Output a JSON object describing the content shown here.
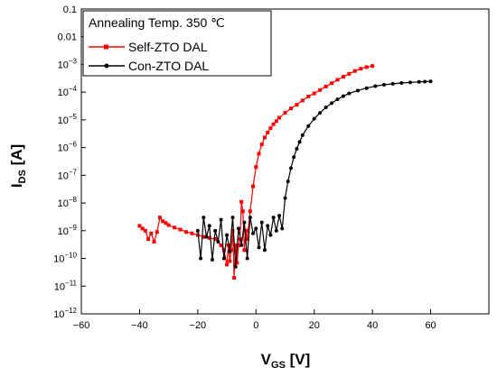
{
  "chart_data": {
    "type": "line",
    "xlabel": {
      "main": "V",
      "sub": "GS",
      "unit": " [V]"
    },
    "ylabel": {
      "main": "I",
      "sub": "DS",
      "unit": " [A]"
    },
    "xlim": [
      -60,
      80
    ],
    "ylim_log10": [
      -12,
      -1
    ],
    "yscale": "log",
    "grid": false,
    "legend": {
      "title": "Annealing Temp. 350 ℃",
      "placement": "top-left"
    },
    "x_ticks": [
      "−60",
      "−40",
      "−20",
      "0",
      "20",
      "40",
      "60"
    ],
    "x_tick_values": [
      -60,
      -40,
      -20,
      0,
      20,
      40,
      60
    ],
    "y_ticks": [
      {
        "value": -1,
        "base": "0.1",
        "exp": ""
      },
      {
        "value": -2,
        "base": "0.01",
        "exp": ""
      },
      {
        "value": -3,
        "base": "10",
        "exp": "−3"
      },
      {
        "value": -4,
        "base": "10",
        "exp": "−4"
      },
      {
        "value": -5,
        "base": "10",
        "exp": "−5"
      },
      {
        "value": -6,
        "base": "10",
        "exp": "−6"
      },
      {
        "value": -7,
        "base": "10",
        "exp": "−7"
      },
      {
        "value": -8,
        "base": "10",
        "exp": "−8"
      },
      {
        "value": -9,
        "base": "10",
        "exp": "−9"
      },
      {
        "value": -10,
        "base": "10",
        "exp": "−10"
      },
      {
        "value": -11,
        "base": "10",
        "exp": "−11"
      },
      {
        "value": -12,
        "base": "10",
        "exp": "−12"
      }
    ],
    "series": [
      {
        "name": "Self-ZTO DAL",
        "color": "#ff0000",
        "marker": "square",
        "x": [
          -40,
          -39,
          -38,
          -37,
          -36,
          -35,
          -34,
          -33,
          -32,
          -31,
          -30,
          -28,
          -26,
          -24,
          -22,
          -20,
          -18,
          -16,
          -14,
          -12,
          -11,
          -10,
          -9.5,
          -9,
          -8.5,
          -8,
          -7.5,
          -7,
          -6.5,
          -6,
          -5.5,
          -5,
          -4.5,
          -4,
          -3.5,
          -3,
          -2,
          -1,
          0,
          1,
          2,
          3,
          4,
          5,
          6,
          7,
          8,
          10,
          12,
          14,
          16,
          18,
          20,
          22,
          24,
          26,
          28,
          30,
          32,
          34,
          36,
          38,
          40
        ],
        "y": [
          1.5e-09,
          1.2e-09,
          1e-09,
          5e-10,
          8e-10,
          4e-10,
          9e-10,
          3e-09,
          2.2e-09,
          1.9e-09,
          1.6e-09,
          1.3e-09,
          1.1e-09,
          9e-10,
          8e-10,
          7e-10,
          6e-10,
          5.5e-10,
          5e-10,
          3e-10,
          2e-10,
          6e-11,
          3e-10,
          8e-11,
          2e-10,
          1e-09,
          2e-11,
          3e-10,
          7e-11,
          3e-10,
          5e-10,
          1.1e-08,
          5e-09,
          2e-10,
          1e-09,
          5e-10,
          5e-09,
          4e-08,
          2e-07,
          6e-07,
          1.3e-06,
          2.3e-06,
          3.5e-06,
          5e-06,
          7e-06,
          9e-06,
          1.2e-05,
          1.8e-05,
          2.6e-05,
          3.5e-05,
          5e-05,
          7e-05,
          9e-05,
          0.00012,
          0.00016,
          0.00021,
          0.00028,
          0.00036,
          0.00046,
          0.00058,
          0.0007,
          0.0008,
          0.00088
        ]
      },
      {
        "name": "Con-ZTO DAL",
        "color": "#000000",
        "marker": "circle",
        "x": [
          -20,
          -19,
          -18,
          -17,
          -16,
          -15,
          -14,
          -13,
          -12,
          -11,
          -10,
          -9,
          -8,
          -7,
          -6,
          -5,
          -4,
          -3,
          -2,
          -1,
          0,
          1,
          2,
          3,
          4,
          5,
          6,
          7,
          8,
          9,
          10,
          11,
          12,
          13,
          14,
          15,
          16,
          18,
          20,
          22,
          24,
          26,
          28,
          30,
          32,
          35,
          38,
          41,
          44,
          47,
          50,
          53,
          56,
          58,
          60
        ],
        "y": [
          1e-09,
          1e-10,
          3e-09,
          6e-10,
          1.5e-09,
          9e-11,
          1e-09,
          4e-10,
          2.5e-09,
          1e-10,
          7e-10,
          1.8e-10,
          3e-09,
          5e-11,
          1.2e-09,
          3e-10,
          2e-09,
          1e-10,
          3e-09,
          8e-10,
          1.2e-09,
          2.5e-10,
          2e-09,
          2e-10,
          1.5e-09,
          7e-10,
          3e-09,
          1e-09,
          3.5e-09,
          1.2e-09,
          1.5e-08,
          6e-08,
          1.8e-07,
          4.5e-07,
          9e-07,
          1.6e-06,
          2.8e-06,
          6e-06,
          1.1e-05,
          1.8e-05,
          2.8e-05,
          4e-05,
          5.5e-05,
          7.2e-05,
          9e-05,
          0.000115,
          0.00014,
          0.000165,
          0.000185,
          0.0002,
          0.000215,
          0.000225,
          0.000235,
          0.00024,
          0.000245
        ]
      }
    ]
  }
}
